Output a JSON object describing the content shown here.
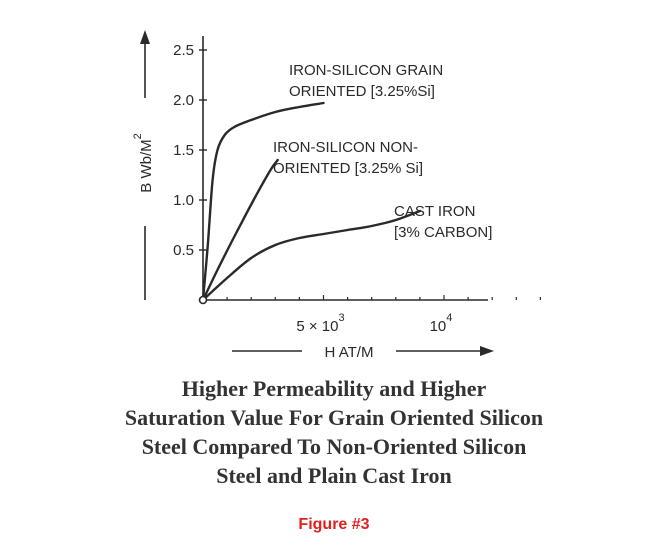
{
  "chart_data": {
    "type": "line",
    "title": "",
    "xlabel": "H AT/M",
    "ylabel_main": "B Wb/M",
    "ylabel_exp": "2",
    "ylim": [
      0,
      2.5
    ],
    "yticks": [
      {
        "value": 0.5,
        "label": "0.5"
      },
      {
        "value": 1.0,
        "label": "1.0"
      },
      {
        "value": 1.5,
        "label": "1.5"
      },
      {
        "value": 2.0,
        "label": "2.0"
      },
      {
        "value": 2.5,
        "label": "2.5"
      }
    ],
    "xlim": [
      0,
      14500
    ],
    "xticks": [
      {
        "value": 5000,
        "base": "5 × 10",
        "exp": "3"
      },
      {
        "value": 10000,
        "base": "10",
        "exp": "4"
      }
    ],
    "series": [
      {
        "name": "IRON-SILICON GRAIN ORIENTED [3.25%Si]",
        "label_lines": [
          "IRON-SILICON GRAIN",
          "ORIENTED [3.25%Si]"
        ],
        "points": [
          [
            0,
            0
          ],
          [
            200,
            0.55
          ],
          [
            400,
            1.2
          ],
          [
            600,
            1.5
          ],
          [
            900,
            1.65
          ],
          [
            1300,
            1.73
          ],
          [
            2000,
            1.8
          ],
          [
            3000,
            1.88
          ],
          [
            4000,
            1.93
          ],
          [
            5000,
            1.97
          ]
        ]
      },
      {
        "name": "IRON-SILICON NON-ORIENTED [3.25% Si]",
        "label_lines": [
          "IRON-SILICON NON-",
          "ORIENTED [3.25% Si]"
        ],
        "points": [
          [
            0,
            0
          ],
          [
            700,
            0.35
          ],
          [
            1400,
            0.68
          ],
          [
            2100,
            1.0
          ],
          [
            2800,
            1.3
          ],
          [
            3100,
            1.4
          ]
        ]
      },
      {
        "name": "CAST IRON [3% CARBON]",
        "label_lines": [
          "CAST IRON",
          "[3% CARBON]"
        ],
        "points": [
          [
            0,
            0
          ],
          [
            1000,
            0.22
          ],
          [
            2000,
            0.42
          ],
          [
            3000,
            0.55
          ],
          [
            4000,
            0.62
          ],
          [
            5000,
            0.66
          ],
          [
            6000,
            0.7
          ],
          [
            7000,
            0.74
          ],
          [
            8000,
            0.8
          ],
          [
            9000,
            0.89
          ]
        ]
      }
    ]
  },
  "caption_lines": [
    "Higher Permeability and Higher",
    "Saturation Value For Grain Oriented Silicon",
    "Steel Compared To Non-Oriented Silicon",
    "Steel and Plain Cast Iron"
  ],
  "figure_label": "Figure #3",
  "colors": {
    "ink": "#2a2a2a",
    "caption": "#333333",
    "figure_label": "#e02020"
  }
}
